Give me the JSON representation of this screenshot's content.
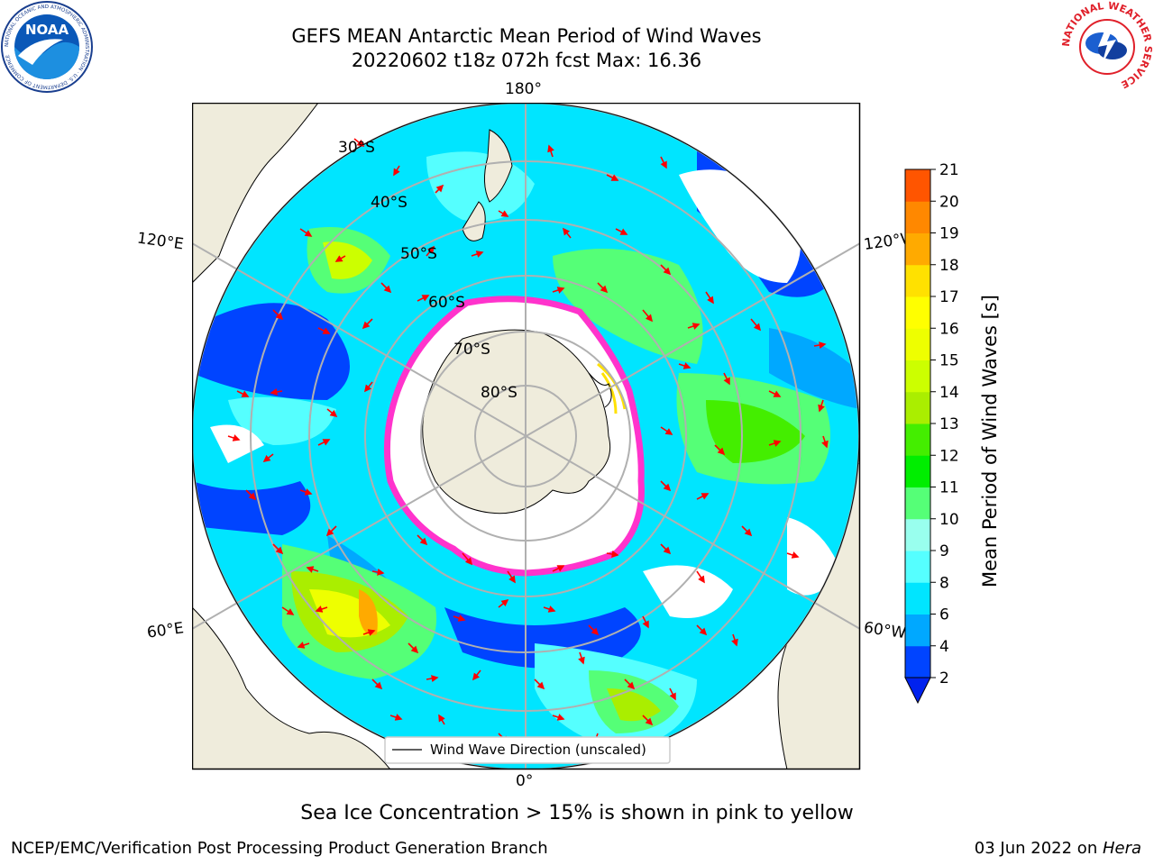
{
  "title": {
    "line1": "GEFS MEAN Antarctic Mean Period of Wind Waves",
    "line2": "20220602 t18z 072h fcst   Max: 16.36"
  },
  "logos": {
    "noaa_text": "NOAA",
    "noaa_ring_text": "NATIONAL OCEANIC AND ATMOSPHERIC ADMINISTRATION · U.S. DEPARTMENT OF COMMERCE",
    "nws_ring_text": "NATIONAL WEATHER SERVICE"
  },
  "map": {
    "projection": "south polar stereographic",
    "longitude_labels": {
      "top": "180°",
      "bottom": "0°",
      "upper_left": "120°E",
      "lower_left": "60°E",
      "upper_right": "120°W",
      "lower_right": "60°W"
    },
    "latitude_labels": [
      "30°S",
      "40°S",
      "50°S",
      "60°S",
      "70°S",
      "80°S"
    ],
    "legend_label": "Wind Wave Direction (unscaled)",
    "colors": {
      "land": "#efecdc",
      "no_data": "#ffffff",
      "sea_ice_low": "#ff33cc",
      "sea_ice_high": "#ffff00",
      "arrow": "#ff0000",
      "grid": "#b0b0b0"
    },
    "max_value": 16.36
  },
  "colorbar": {
    "label": "Mean Period of Wind Waves [s]",
    "ticks": [
      "2",
      "4",
      "6",
      "8",
      "9",
      "10",
      "11",
      "12",
      "13",
      "14",
      "15",
      "16",
      "17",
      "18",
      "19",
      "20",
      "21"
    ],
    "colors": [
      "#0044ff",
      "#00a8ff",
      "#00e5ff",
      "#55ffff",
      "#99ffee",
      "#55ff77",
      "#00ee00",
      "#44ee00",
      "#aaee00",
      "#ccff00",
      "#eeff00",
      "#ffff00",
      "#ffe100",
      "#ffaa00",
      "#ff8800",
      "#ff5500",
      "#ff2200",
      "#ff0000"
    ],
    "extend_color": "#0022ee"
  },
  "note": "Sea Ice Concentration > 15% is shown in pink to yellow",
  "footer": {
    "left": "NCEP/EMC/Verification Post Processing Product Generation Branch",
    "right_prefix": "03 Jun 2022 on ",
    "right_host": "Hera"
  }
}
